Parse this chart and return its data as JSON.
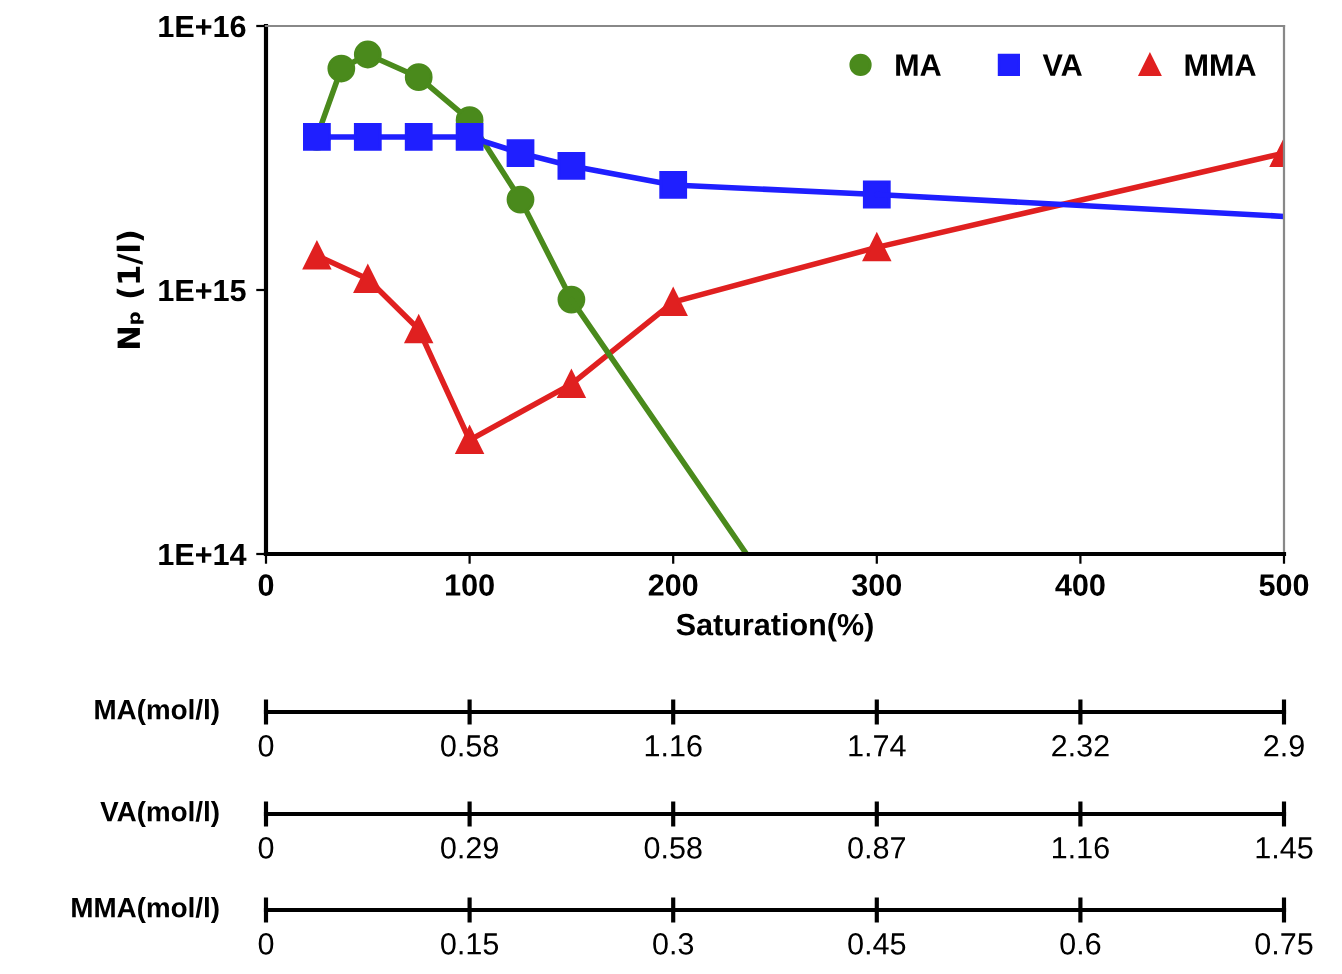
{
  "chart_data": {
    "type": "line",
    "xlabel": "Saturation(%)",
    "ylabel": "Nₚ (1/l)",
    "xlim": [
      0,
      500
    ],
    "xticks": [
      0,
      100,
      200,
      300,
      400,
      500
    ],
    "ylim": [
      100000000000000.0,
      1e+16
    ],
    "yticks": [
      {
        "value": 100000000000000.0,
        "label": "1E+14"
      },
      {
        "value": 1000000000000000.0,
        "label": "1E+15"
      },
      {
        "value": 1e+16,
        "label": "1E+16"
      }
    ],
    "log": "y",
    "grid": false,
    "legend": "top right",
    "x2label": "MA(mol/l)",
    "x2lim": [
      0,
      2.9
    ],
    "x2ticks": [
      0,
      0.58,
      1.16,
      1.74,
      2.32,
      2.9
    ],
    "annotations": [
      "VA(mol/l)",
      "0",
      "0.29",
      "0.58",
      "0.87",
      "1.16",
      "1.45",
      "MMA(mol/l)",
      "0",
      "0.15",
      "0.3",
      "0.45",
      "0.6",
      "0.75"
    ],
    "series": [
      {
        "name": "MA",
        "color": "#4a8a1c",
        "marker": "circle",
        "x": [
          25,
          37,
          50,
          75,
          100,
          125,
          150
        ],
        "values": [
          3800000000000000.0,
          6900000000000000.0,
          7800000000000000.0,
          6400000000000000.0,
          4400000000000000.0,
          2200000000000000.0,
          920000000000000.0
        ]
      },
      {
        "name": "VA",
        "color": "#1f1fff",
        "marker": "square",
        "x": [
          25,
          50,
          75,
          100,
          125,
          150,
          200,
          300
        ],
        "values": [
          3800000000000000.0,
          3800000000000000.0,
          3800000000000000.0,
          3800000000000000.0,
          3300000000000000.0,
          2950000000000000.0,
          2500000000000000.0,
          2300000000000000.0
        ]
      },
      {
        "name": "MMA",
        "color": "#e02020",
        "marker": "triangle",
        "x": [
          25,
          50,
          75,
          100,
          150,
          200,
          300,
          500
        ],
        "values": [
          1350000000000000.0,
          1100000000000000.0,
          710000000000000.0,
          270000000000000.0,
          440000000000000.0,
          900000000000000.0,
          1450000000000000.0,
          3300000000000000.0
        ]
      },
      {
        "color": "#4a8a1c",
        "marker": "none",
        "x": [
          150,
          236
        ],
        "values": [
          920000000000000.0,
          100000000000000.0
        ]
      },
      {
        "color": "#1f1fff",
        "marker": "none",
        "x": [
          300,
          500
        ],
        "values": [
          2300000000000000.0,
          1900000000000000.0
        ]
      }
    ]
  }
}
